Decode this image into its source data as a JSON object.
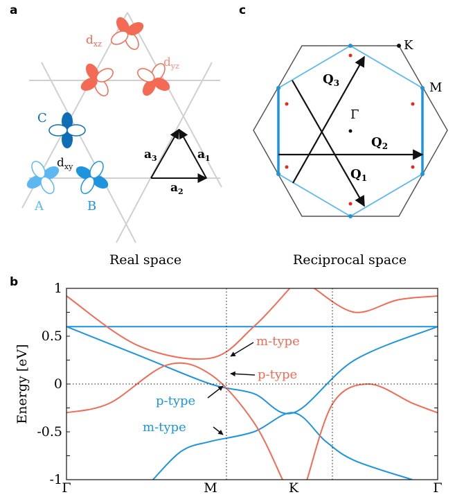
{
  "panel_letters": {
    "a": "a",
    "b": "b",
    "c": "c"
  },
  "real_space": {
    "caption": "Real space",
    "orbital_labels": {
      "dxz": "d",
      "dxz_sub": "xz",
      "dyz": "d",
      "dyz_sub": "yz",
      "dxy": "d",
      "dxy_sub": "xy"
    },
    "sublattice_labels": {
      "A": "A",
      "B": "B",
      "C": "C"
    },
    "vectors": {
      "a1": "a",
      "a1_sub": "1",
      "a2": "a",
      "a2_sub": "2",
      "a3": "a",
      "a3_sub": "3"
    },
    "colors": {
      "dxz": "#f36b55",
      "dyz": "#f5907f",
      "A": "#5bb8f0",
      "B": "#1e94de",
      "C": "#0d6db5",
      "lattice": "#d0d0d0"
    }
  },
  "reciprocal_space": {
    "caption": "Reciprocal space",
    "points": {
      "K": "K",
      "M": "M",
      "Gamma": "Γ"
    },
    "vectors": {
      "Q1": "Q",
      "Q1_sub": "1",
      "Q2": "Q",
      "Q2_sub": "2",
      "Q3": "Q",
      "Q3_sub": "3"
    },
    "colors": {
      "bz_outer": "#555555",
      "fermi_surface": "#1e94de",
      "hex_inner": "#5bb8f0",
      "dots": "#e2291c"
    }
  },
  "band_plot": {
    "ylabel": "Energy [eV]",
    "y_ticks": [
      "1",
      "0.5",
      "0",
      "-0.5",
      "-1"
    ],
    "x_ticks": [
      "Γ",
      "M",
      "K",
      "Γ"
    ],
    "annotations": {
      "m_type_red": "m-type",
      "p_type_red": "p-type",
      "p_type_blue": "p-type",
      "m_type_blue": "m-type"
    },
    "colors": {
      "red_band": "#f36b55",
      "blue_band": "#1e94de"
    }
  },
  "chart_data": {
    "type": "line",
    "xlabel": "",
    "ylabel": "Energy [eV]",
    "ylim": [
      -1,
      1
    ],
    "x_ticks": [
      "Γ",
      "M",
      "K",
      "Γ"
    ],
    "x_tick_positions": [
      0,
      1,
      1.577,
      2.577
    ],
    "grid": false,
    "series": [
      {
        "color": "#1e94de",
        "x": [
          0,
          0.5,
          1.0,
          1.3,
          1.577,
          2.0,
          2.577
        ],
        "y": [
          0.6,
          0.3,
          0.0,
          -0.1,
          -0.3,
          0.25,
          0.6
        ]
      },
      {
        "color": "#1e94de",
        "x": [
          0.6,
          0.8,
          1.0,
          1.3,
          1.577,
          1.8,
          2.0,
          2.4
        ],
        "y": [
          -1.0,
          -0.7,
          -0.6,
          -0.5,
          -0.3,
          -0.6,
          -0.8,
          -1.0
        ]
      },
      {
        "color": "#1e94de",
        "x": [
          0,
          2.577
        ],
        "y": [
          0.6,
          0.6
        ]
      },
      {
        "color": "#f36b55",
        "x": [
          0,
          0.3,
          0.7,
          1.0,
          1.3,
          1.5
        ],
        "y": [
          -0.3,
          -0.2,
          0.2,
          0.1,
          -0.4,
          -1.0
        ]
      },
      {
        "color": "#f36b55",
        "x": [
          0,
          0.5,
          1.0,
          1.3,
          1.55
        ],
        "y": [
          0.92,
          0.4,
          0.27,
          0.6,
          1.0
        ]
      },
      {
        "color": "#f36b55",
        "x": [
          1.67,
          1.85,
          2.1,
          2.4,
          2.577
        ],
        "y": [
          -1.0,
          -0.2,
          0.0,
          -0.2,
          -0.3
        ]
      },
      {
        "color": "#f36b55",
        "x": [
          1.72,
          2.0,
          2.3,
          2.577
        ],
        "y": [
          1.0,
          0.75,
          0.88,
          0.92
        ]
      }
    ]
  }
}
